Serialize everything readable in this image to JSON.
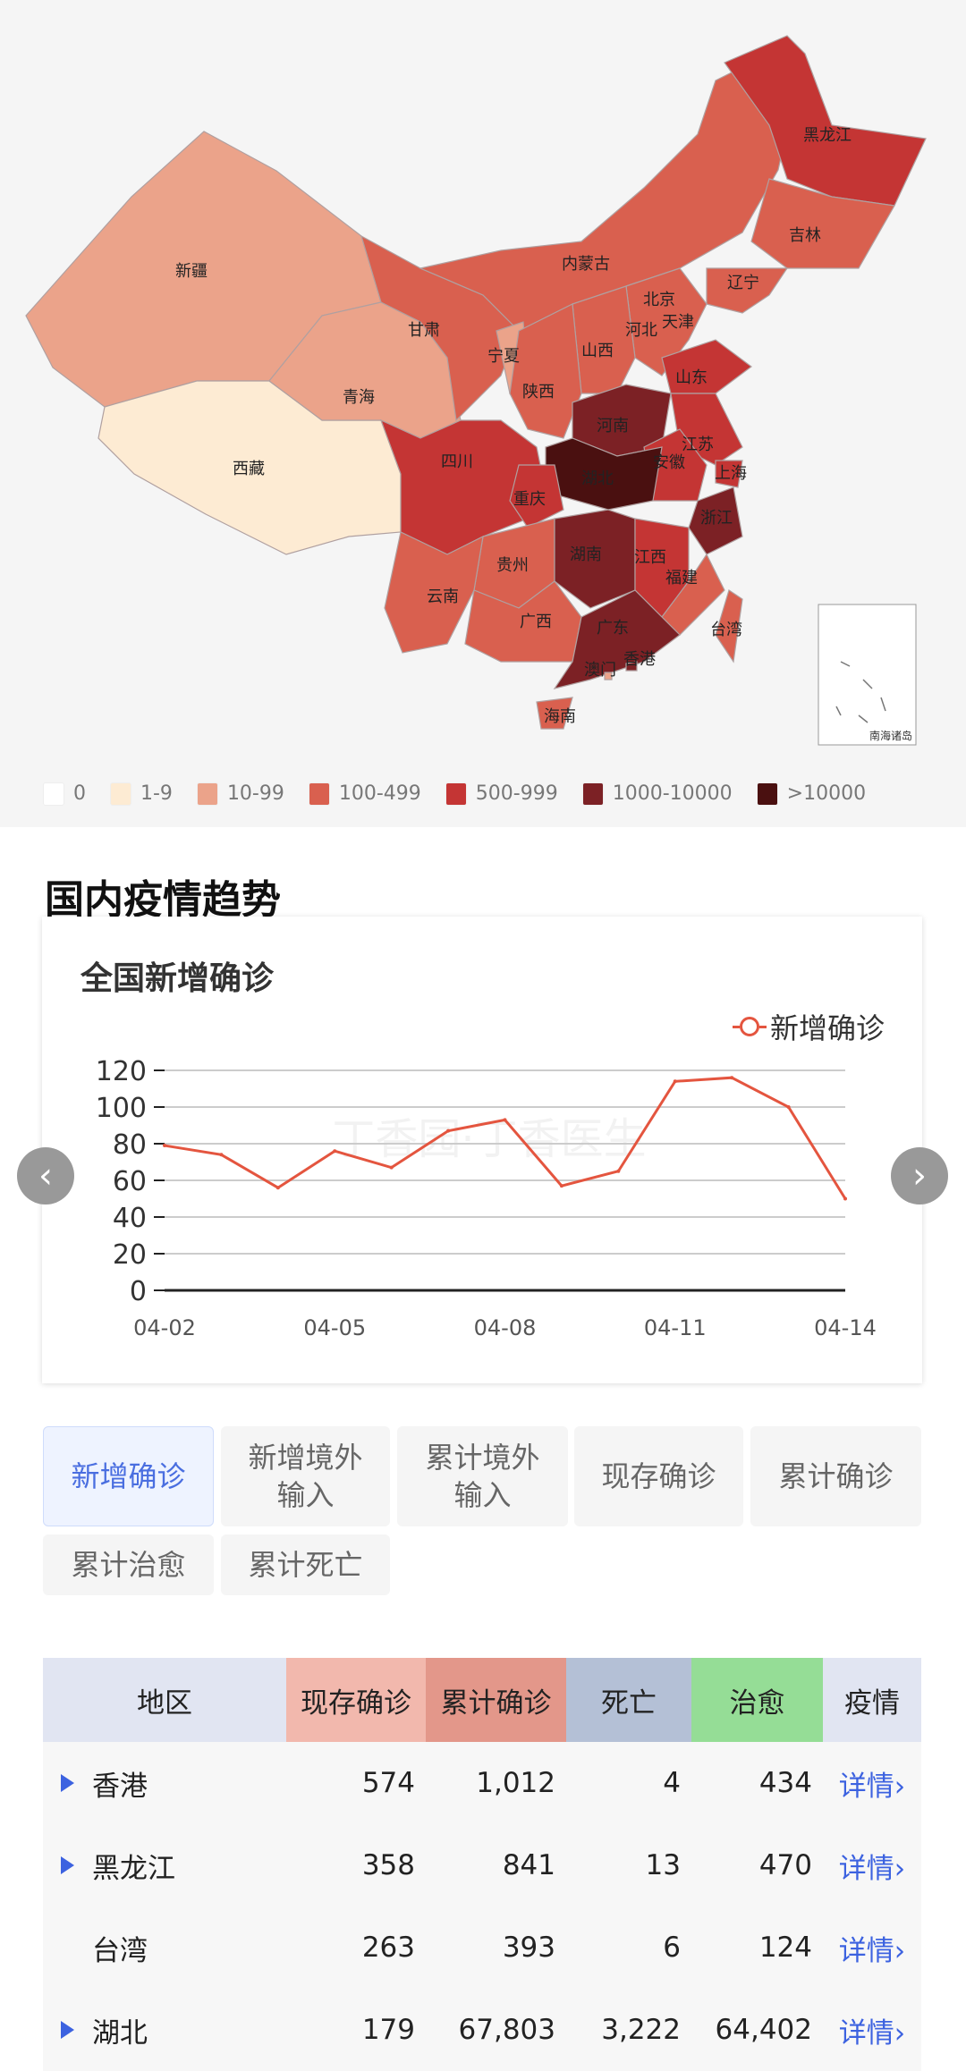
{
  "map": {
    "inset_label": "南海诸岛",
    "provinces": [
      {
        "name": "新疆",
        "band": 2
      },
      {
        "name": "西藏",
        "band": 1
      },
      {
        "name": "青海",
        "band": 2
      },
      {
        "name": "甘肃",
        "band": 3
      },
      {
        "name": "内蒙古",
        "band": 3
      },
      {
        "name": "黑龙江",
        "band": 4
      },
      {
        "name": "吉林",
        "band": 3
      },
      {
        "name": "辽宁",
        "band": 3
      },
      {
        "name": "北京",
        "band": 4
      },
      {
        "name": "天津",
        "band": 3
      },
      {
        "name": "河北",
        "band": 3
      },
      {
        "name": "山西",
        "band": 3
      },
      {
        "name": "宁夏",
        "band": 2
      },
      {
        "name": "陕西",
        "band": 3
      },
      {
        "name": "山东",
        "band": 4
      },
      {
        "name": "河南",
        "band": 5
      },
      {
        "name": "江苏",
        "band": 4
      },
      {
        "name": "安徽",
        "band": 4
      },
      {
        "name": "上海",
        "band": 4
      },
      {
        "name": "湖北",
        "band": 6
      },
      {
        "name": "四川",
        "band": 4
      },
      {
        "name": "重庆",
        "band": 4
      },
      {
        "name": "浙江",
        "band": 5
      },
      {
        "name": "贵州",
        "band": 3
      },
      {
        "name": "湖南",
        "band": 5
      },
      {
        "name": "江西",
        "band": 4
      },
      {
        "name": "福建",
        "band": 3
      },
      {
        "name": "云南",
        "band": 3
      },
      {
        "name": "广西",
        "band": 3
      },
      {
        "name": "广东",
        "band": 5
      },
      {
        "name": "台湾",
        "band": 3
      },
      {
        "name": "香港",
        "band": 5
      },
      {
        "name": "澳门",
        "band": 2
      },
      {
        "name": "海南",
        "band": 3
      }
    ]
  },
  "legend": [
    {
      "label": "0",
      "color": "#ffffff"
    },
    {
      "label": "1-9",
      "color": "#fdebd3"
    },
    {
      "label": "10-99",
      "color": "#eba38a"
    },
    {
      "label": "100-499",
      "color": "#d9604f"
    },
    {
      "label": "500-999",
      "color": "#c43534"
    },
    {
      "label": "1000-10000",
      "color": "#7c2125"
    },
    {
      "label": ">10000",
      "color": "#4a1010"
    }
  ],
  "section_title": "国内疫情趋势",
  "chart_data": {
    "type": "line",
    "title": "全国新增确诊",
    "x": [
      "04-02",
      "04-03",
      "04-04",
      "04-05",
      "04-06",
      "04-07",
      "04-08",
      "04-09",
      "04-10",
      "04-11",
      "04-12",
      "04-13",
      "04-14"
    ],
    "x_tick_labels": [
      "04-02",
      "04-05",
      "04-08",
      "04-11",
      "04-14"
    ],
    "series": [
      {
        "name": "新增确诊",
        "color": "#e4553f",
        "values": [
          79,
          74,
          56,
          76,
          67,
          87,
          93,
          57,
          65,
          114,
          116,
          100,
          50
        ]
      }
    ],
    "y_ticks": [
      "0",
      "20",
      "40",
      "60",
      "80",
      "100",
      "120"
    ],
    "ylim": [
      0,
      120
    ],
    "grid": true,
    "legend_position": "top-right",
    "watermark": "丁香园·丁香医生"
  },
  "nav": {
    "prev_icon": "chevron-left",
    "next_icon": "chevron-right",
    "prev": "‹",
    "next": "›"
  },
  "tabs": [
    "新增确诊",
    "新增境外输入",
    "累计境外输入",
    "现存确诊",
    "累计确诊",
    "累计治愈",
    "累计死亡"
  ],
  "tabs_display": [
    "新增确诊",
    "新增境外\n输入",
    "累计境外\n输入",
    "现存确诊",
    "累计确诊",
    "累计治愈",
    "累计死亡"
  ],
  "active_tab": 0,
  "table": {
    "headers": [
      "地区",
      "现存确诊",
      "累计确诊",
      "死亡",
      "治愈",
      "疫情"
    ],
    "rows": [
      {
        "region": "香港",
        "expandable": true,
        "current": "574",
        "total": "1,012",
        "deaths": "4",
        "cured": "434",
        "detail": "详情›"
      },
      {
        "region": "黑龙江",
        "expandable": true,
        "current": "358",
        "total": "841",
        "deaths": "13",
        "cured": "470",
        "detail": "详情›"
      },
      {
        "region": "台湾",
        "expandable": false,
        "current": "263",
        "total": "393",
        "deaths": "6",
        "cured": "124",
        "detail": "详情›"
      },
      {
        "region": "湖北",
        "expandable": true,
        "current": "179",
        "total": "67,803",
        "deaths": "3,222",
        "cured": "64,402",
        "detail": "详情›"
      }
    ]
  }
}
